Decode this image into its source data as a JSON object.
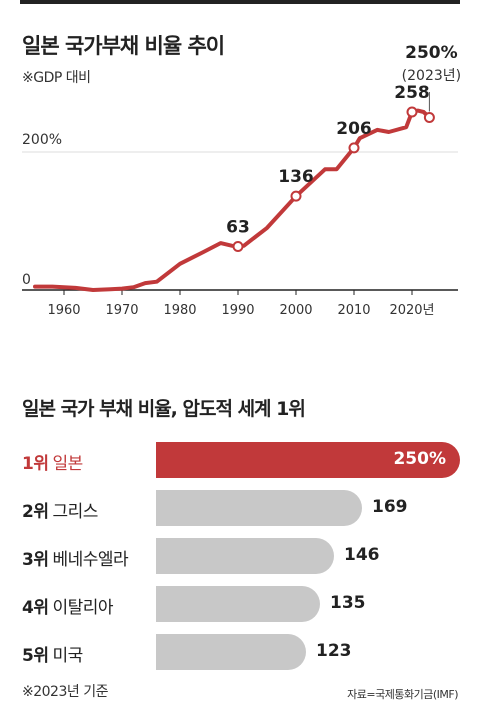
{
  "line_title": "일본 국가부채 비율 추이",
  "line_note": "※GDP 대비",
  "rank_title": "일본 국가 부채 비율, 압도적 세계 1위",
  "footnote": "※2023년 기준",
  "source": "자료=국제통화기금(IMF)",
  "colors": {
    "accent": "#c1393a",
    "bar_gray": "#c8c8c8",
    "axis": "#222222",
    "grid": "#dcdcdc"
  },
  "chart_data": [
    {
      "type": "line",
      "title": "일본 국가부채 비율 추이",
      "subtitle": "※GDP 대비",
      "x_ticks": [
        "1960",
        "1970",
        "1980",
        "1990",
        "2000",
        "2010",
        "2020년"
      ],
      "x_tick_values": [
        1960,
        1970,
        1980,
        1990,
        2000,
        2010,
        2020
      ],
      "y_tick_labels": [
        "0",
        "200%"
      ],
      "y_tick_values": [
        0,
        200
      ],
      "xlim": [
        1955,
        2027
      ],
      "ylim": [
        0,
        300
      ],
      "grid": true,
      "series": [
        {
          "x": [
            1955,
            1958,
            1962,
            1965,
            1968,
            1970,
            1972,
            1974,
            1976,
            1980,
            1984,
            1987,
            1989,
            1990,
            1991,
            1995,
            2000,
            2005,
            2007,
            2010,
            2011,
            2014,
            2016,
            2019,
            2020,
            2021,
            2022,
            2023
          ],
          "y": [
            5,
            5,
            3,
            0,
            1,
            2,
            4,
            10,
            12,
            38,
            55,
            68,
            64,
            63,
            64,
            90,
            136,
            175,
            175,
            206,
            220,
            232,
            229,
            236,
            258,
            260,
            258,
            250
          ]
        }
      ],
      "annotations": [
        {
          "x": 1990,
          "y": 63,
          "label": "63",
          "marker": true
        },
        {
          "x": 2000,
          "y": 136,
          "label": "136",
          "marker": true
        },
        {
          "x": 2010,
          "y": 206,
          "label": "206",
          "marker": true
        },
        {
          "x": 2020,
          "y": 258,
          "label": "258",
          "marker": true
        },
        {
          "x": 2023,
          "y": 250,
          "label": "250%",
          "sublabel": "(2023년)",
          "marker": true,
          "callout": true
        }
      ]
    },
    {
      "type": "bar",
      "orientation": "horizontal",
      "title": "일본 국가 부채 비율, 압도적 세계 1위",
      "ranks": [
        "1위",
        "2위",
        "3위",
        "4위",
        "5위"
      ],
      "categories": [
        "일본",
        "그리스",
        "베네수엘라",
        "이탈리아",
        "미국"
      ],
      "values": [
        250,
        169,
        146,
        135,
        123
      ],
      "value_labels": [
        "250%",
        "169",
        "146",
        "135",
        "123"
      ],
      "highlight": 0,
      "xlim": [
        0,
        250
      ]
    }
  ]
}
